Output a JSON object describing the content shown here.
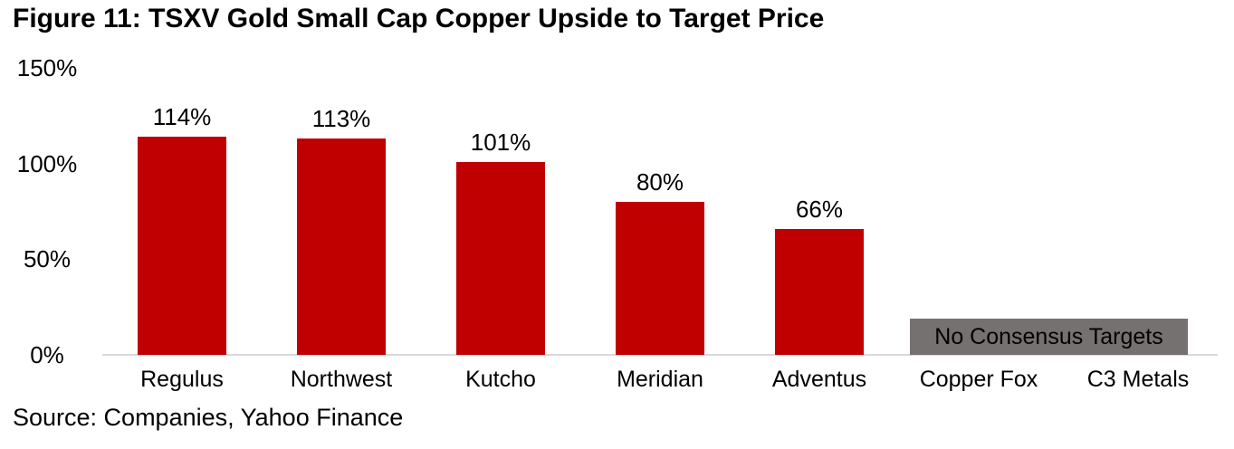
{
  "figure": {
    "title": "Figure 11: TSXV Gold Small Cap Copper Upside to Target Price",
    "source": "Source: Companies, Yahoo Finance"
  },
  "chart_data": {
    "type": "bar",
    "title": "Figure 11: TSXV Gold Small Cap Copper Upside to Target Price",
    "categories": [
      "Regulus",
      "Northwest",
      "Kutcho",
      "Meridian",
      "Adventus",
      "Copper Fox",
      "C3 Metals"
    ],
    "values": [
      114,
      113,
      101,
      80,
      66,
      null,
      null
    ],
    "data_labels": [
      "114%",
      "113%",
      "101%",
      "80%",
      "66%",
      "",
      ""
    ],
    "y_ticks": [
      "150%",
      "100%",
      "50%",
      "0%"
    ],
    "y_tick_values": [
      150,
      100,
      50,
      0
    ],
    "ylim": [
      0,
      150
    ],
    "xlabel": "",
    "ylabel": "",
    "grid": "off",
    "legend": "none",
    "bar_color": "#c00000",
    "axis_line_color": "#d9d9d9",
    "annotation": {
      "text": "No Consensus Targets",
      "bg_color": "#767171",
      "text_color": "#000000",
      "covers": [
        "Copper Fox",
        "C3 Metals"
      ],
      "height_pct_of_axis": 19
    }
  }
}
